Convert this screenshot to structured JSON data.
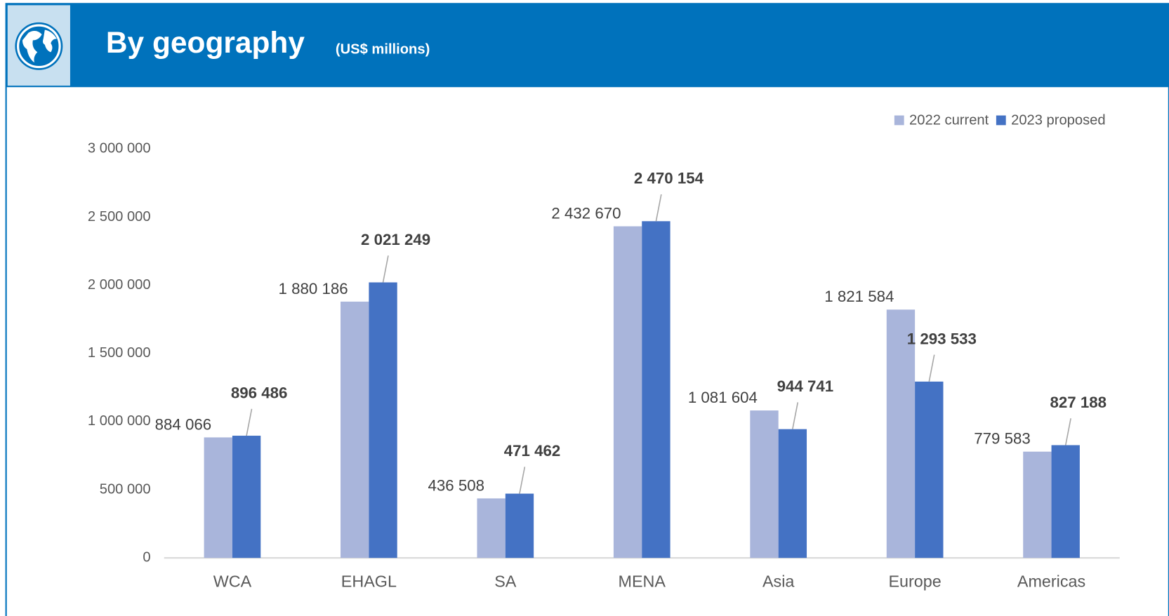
{
  "chart_data": {
    "type": "bar",
    "title": "By geography",
    "subtitle": "(US$ millions)",
    "categories": [
      "WCA",
      "EHAGL",
      "SA",
      "MENA",
      "Asia",
      "Europe",
      "Americas"
    ],
    "series": [
      {
        "name": "2022 current",
        "color": "#a9b5db",
        "values": [
          884066,
          1880186,
          436508,
          2432670,
          1081604,
          1821584,
          779583
        ],
        "value_labels": [
          "884 066",
          "1 880 186",
          "436 508",
          "2 432 670",
          "1 081 604",
          "1 821 584",
          "779 583"
        ]
      },
      {
        "name": "2023 proposed",
        "color": "#4472c4",
        "values": [
          896486,
          2021249,
          471462,
          2470154,
          944741,
          1293533,
          827188
        ],
        "value_labels": [
          "896 486",
          "2 021 249",
          "471 462",
          "2 470 154",
          "944 741",
          "1 293 533",
          "827 188"
        ]
      }
    ],
    "ylim": [
      0,
      3000000
    ],
    "yticks": [
      0,
      {
        "value": 500000,
        "label": "500 000"
      },
      {
        "value": 1000000,
        "label": "1 000 000"
      },
      {
        "value": 1500000,
        "label": "1 500 000"
      },
      {
        "value": 2000000,
        "label": "2 000 000"
      },
      {
        "value": 2500000,
        "label": "2 500 000"
      },
      {
        "value": 3000000,
        "label": "3 000 000"
      }
    ],
    "legend": "top-right"
  }
}
